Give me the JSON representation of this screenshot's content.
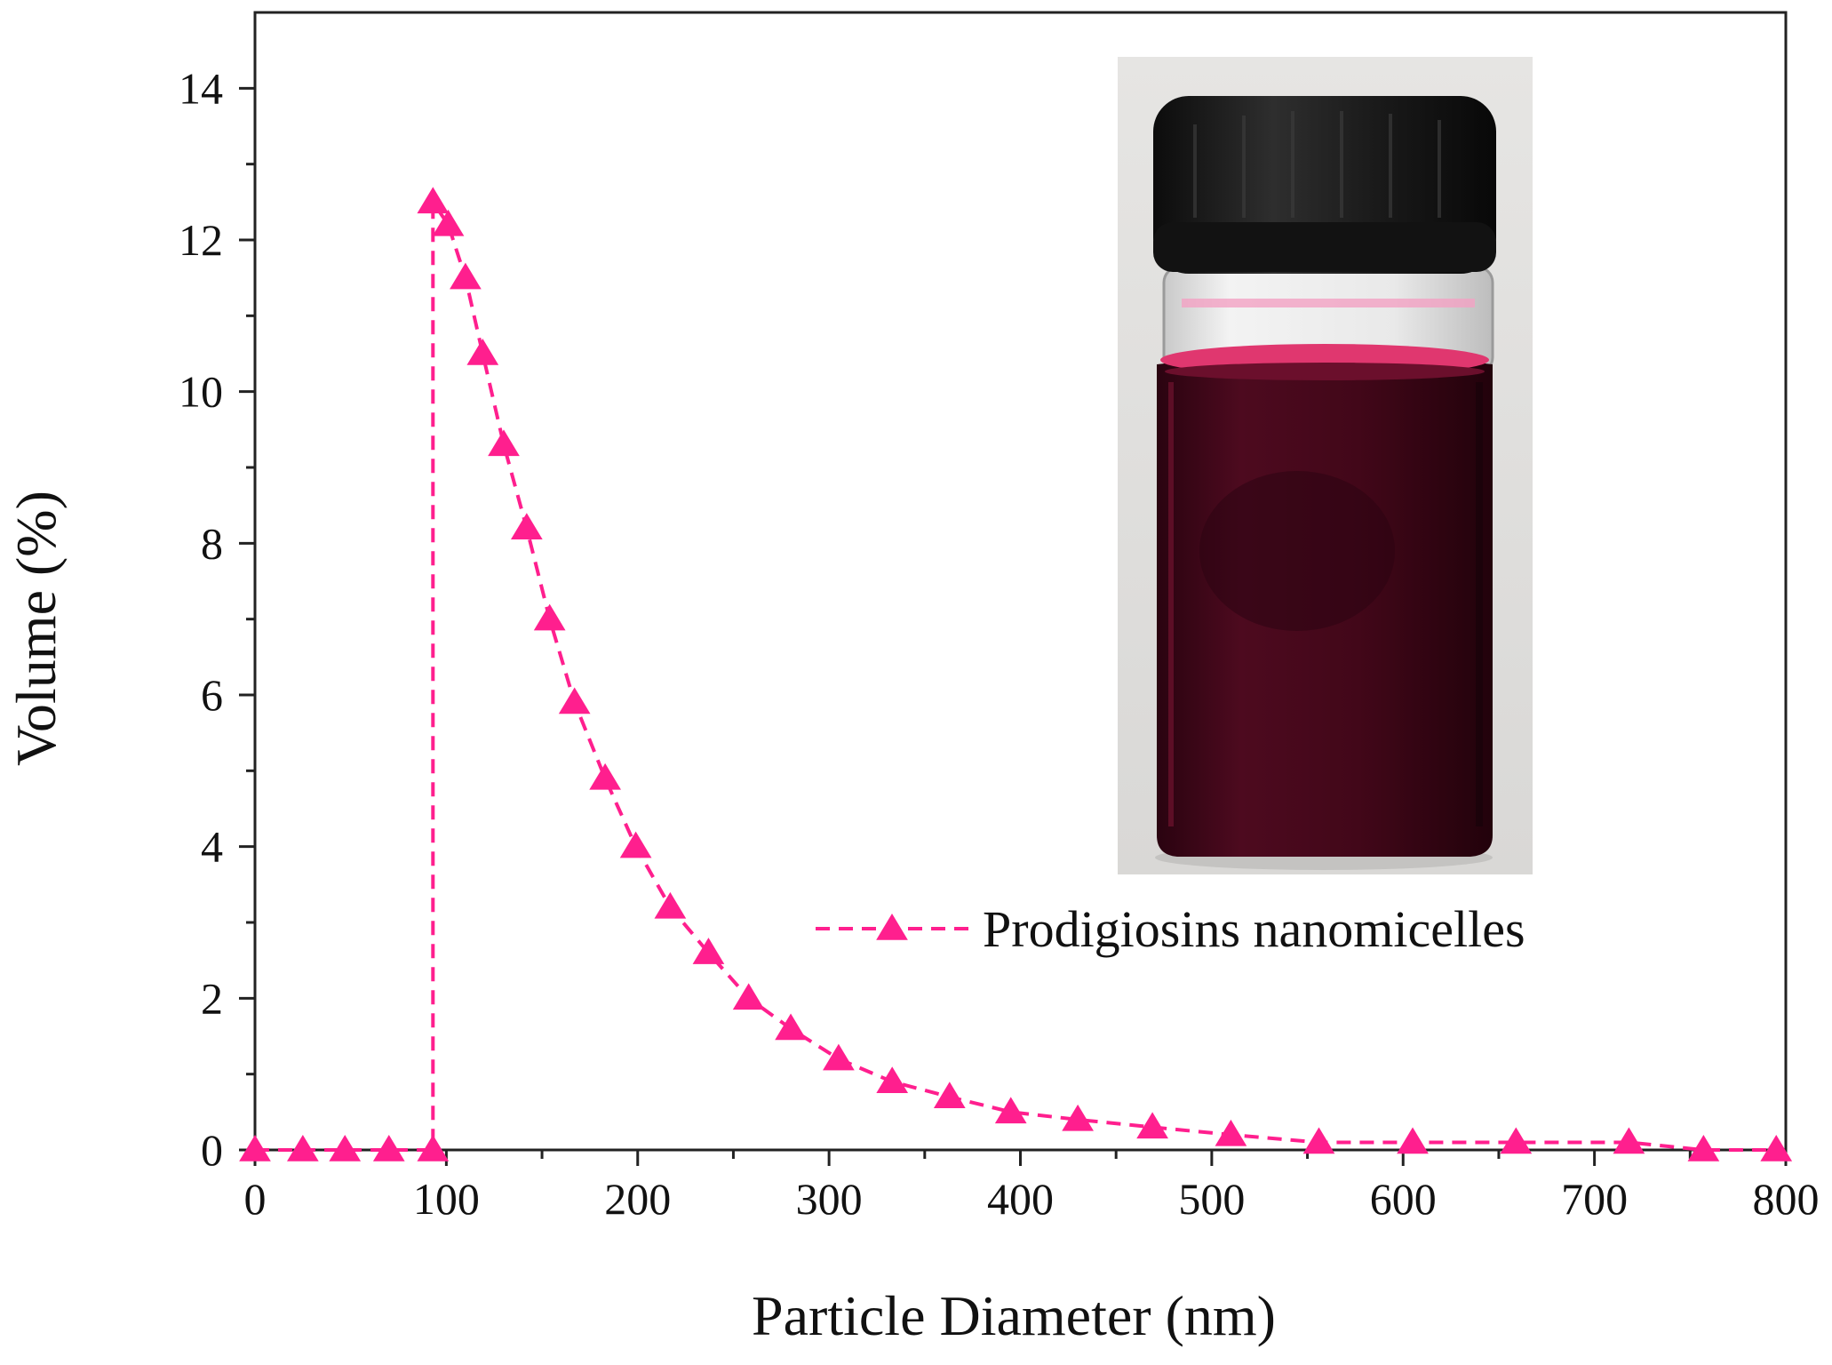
{
  "chart_data": {
    "type": "line",
    "xlabel": "Particle Diameter (nm)",
    "ylabel": "Volume (%)",
    "xlim": [
      0,
      800
    ],
    "ylim": [
      0,
      15
    ],
    "xticks": [
      0,
      100,
      200,
      300,
      400,
      500,
      600,
      700,
      800
    ],
    "yticks": [
      0,
      2,
      4,
      6,
      8,
      10,
      12,
      14
    ],
    "grid": false,
    "legend_position": "center-right",
    "series": [
      {
        "name": "Prodigiosins nanomicelles",
        "color": "#ff1f8e",
        "line_style": "dashed",
        "marker": "triangle",
        "x": [
          0,
          25,
          47,
          70,
          93,
          93,
          101,
          110,
          119,
          130,
          142,
          154,
          167,
          183,
          199,
          217,
          237,
          258,
          280,
          305,
          333,
          363,
          395,
          430,
          469,
          510,
          556,
          605,
          659,
          718,
          757,
          795
        ],
        "y": [
          0,
          0,
          0,
          0,
          0,
          12.5,
          12.2,
          11.5,
          10.5,
          9.3,
          8.2,
          7.0,
          5.9,
          4.9,
          4.0,
          3.2,
          2.6,
          2.0,
          1.6,
          1.2,
          0.9,
          0.7,
          0.5,
          0.4,
          0.3,
          0.2,
          0.1,
          0.1,
          0.1,
          0.1,
          0.0,
          0.0
        ]
      }
    ],
    "inset": {
      "type": "photo",
      "subject": "glass-vial-with-red-liquid",
      "liquid_color": "#4a0a1e",
      "cap_color": "#1a1a1a"
    }
  }
}
